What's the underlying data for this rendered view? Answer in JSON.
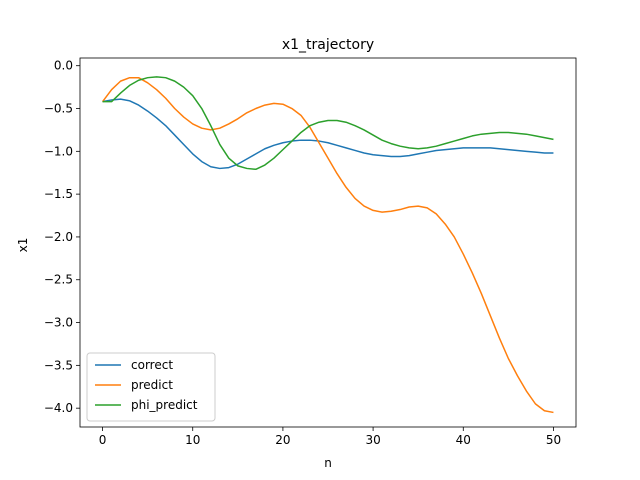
{
  "chart_data": {
    "type": "line",
    "title": "x1_trajectory",
    "xlabel": "n",
    "ylabel": "x1",
    "xlim": [
      -2.5,
      52.5
    ],
    "ylim": [
      -4.22,
      0.09
    ],
    "xticks": [
      0,
      10,
      20,
      30,
      40,
      50
    ],
    "xtick_labels": [
      "0",
      "10",
      "20",
      "30",
      "40",
      "50"
    ],
    "yticks": [
      0.0,
      -0.5,
      -1.0,
      -1.5,
      -2.0,
      -2.5,
      -3.0,
      -3.5,
      -4.0
    ],
    "ytick_labels": [
      "0.0",
      "−0.5",
      "−1.0",
      "−1.5",
      "−2.0",
      "−2.5",
      "−3.0",
      "−3.5",
      "−4.0"
    ],
    "grid": false,
    "legend_position": "lower-left",
    "x": [
      0,
      1,
      2,
      3,
      4,
      5,
      6,
      7,
      8,
      9,
      10,
      11,
      12,
      13,
      14,
      15,
      16,
      17,
      18,
      19,
      20,
      21,
      22,
      23,
      24,
      25,
      26,
      27,
      28,
      29,
      30,
      31,
      32,
      33,
      34,
      35,
      36,
      37,
      38,
      39,
      40,
      41,
      42,
      43,
      44,
      45,
      46,
      47,
      48,
      49,
      50
    ],
    "series": [
      {
        "name": "correct",
        "color": "#1f77b4",
        "values": [
          -0.42,
          -0.4,
          -0.39,
          -0.41,
          -0.46,
          -0.53,
          -0.61,
          -0.7,
          -0.81,
          -0.92,
          -1.03,
          -1.12,
          -1.18,
          -1.2,
          -1.19,
          -1.15,
          -1.09,
          -1.03,
          -0.97,
          -0.93,
          -0.9,
          -0.88,
          -0.87,
          -0.87,
          -0.88,
          -0.9,
          -0.93,
          -0.96,
          -0.99,
          -1.02,
          -1.04,
          -1.05,
          -1.06,
          -1.06,
          -1.05,
          -1.03,
          -1.01,
          -0.99,
          -0.98,
          -0.97,
          -0.96,
          -0.96,
          -0.96,
          -0.96,
          -0.97,
          -0.98,
          -0.99,
          -1.0,
          -1.01,
          -1.02,
          -1.02
        ]
      },
      {
        "name": "predict",
        "color": "#ff7f0e",
        "values": [
          -0.42,
          -0.28,
          -0.18,
          -0.14,
          -0.14,
          -0.2,
          -0.28,
          -0.38,
          -0.5,
          -0.6,
          -0.68,
          -0.73,
          -0.75,
          -0.73,
          -0.68,
          -0.62,
          -0.55,
          -0.5,
          -0.46,
          -0.44,
          -0.45,
          -0.5,
          -0.58,
          -0.72,
          -0.9,
          -1.08,
          -1.26,
          -1.42,
          -1.55,
          -1.64,
          -1.69,
          -1.71,
          -1.7,
          -1.68,
          -1.65,
          -1.64,
          -1.66,
          -1.73,
          -1.85,
          -2.0,
          -2.2,
          -2.42,
          -2.66,
          -2.92,
          -3.18,
          -3.42,
          -3.62,
          -3.8,
          -3.95,
          -4.03,
          -4.05
        ]
      },
      {
        "name": "phi_predict",
        "color": "#2ca02c",
        "values": [
          -0.42,
          -0.42,
          -0.32,
          -0.23,
          -0.17,
          -0.14,
          -0.13,
          -0.14,
          -0.18,
          -0.25,
          -0.35,
          -0.5,
          -0.7,
          -0.92,
          -1.08,
          -1.17,
          -1.2,
          -1.21,
          -1.16,
          -1.08,
          -0.98,
          -0.88,
          -0.78,
          -0.7,
          -0.66,
          -0.64,
          -0.64,
          -0.66,
          -0.7,
          -0.75,
          -0.81,
          -0.87,
          -0.91,
          -0.94,
          -0.96,
          -0.97,
          -0.96,
          -0.94,
          -0.91,
          -0.88,
          -0.85,
          -0.82,
          -0.8,
          -0.79,
          -0.78,
          -0.78,
          -0.79,
          -0.8,
          -0.82,
          -0.84,
          -0.86
        ]
      }
    ]
  }
}
